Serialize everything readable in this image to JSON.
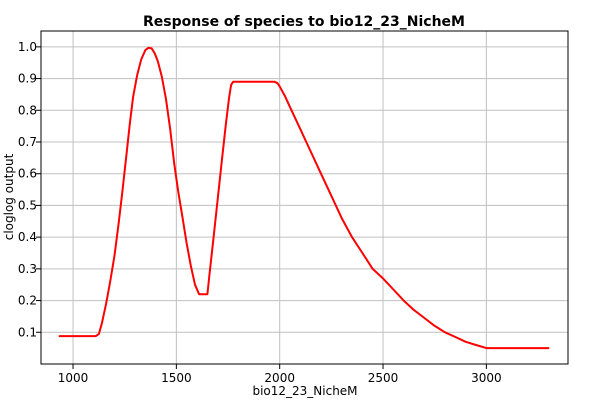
{
  "chart_data": {
    "type": "line",
    "title": "Response of species to bio12_23_NicheM",
    "xlabel": "bio12_23_NicheM",
    "ylabel": "cloglog output",
    "xlim": [
      845,
      3395
    ],
    "ylim": [
      0.0,
      1.05
    ],
    "xticks": [
      1000,
      1500,
      2000,
      2500,
      3000
    ],
    "yticks": [
      0.1,
      0.2,
      0.3,
      0.4,
      0.5,
      0.6,
      0.7,
      0.8,
      0.9,
      1.0
    ],
    "xtick_labels": [
      "1000",
      "1500",
      "2000",
      "2500",
      "3000"
    ],
    "ytick_labels": [
      "0.1",
      "0.2",
      "0.3",
      "0.4",
      "0.5",
      "0.6",
      "0.7",
      "0.8",
      "0.9",
      "1.0"
    ],
    "grid": true,
    "line_color": "#ff0000",
    "x": [
      935,
      1000,
      1050,
      1110,
      1125,
      1140,
      1160,
      1180,
      1200,
      1220,
      1240,
      1260,
      1275,
      1290,
      1310,
      1330,
      1350,
      1365,
      1380,
      1395,
      1410,
      1430,
      1450,
      1470,
      1490,
      1510,
      1530,
      1550,
      1570,
      1590,
      1610,
      1630,
      1645,
      1650,
      1660,
      1680,
      1700,
      1720,
      1740,
      1755,
      1765,
      1775,
      1800,
      1850,
      1900,
      1950,
      1975,
      1990,
      2000,
      2025,
      2050,
      2100,
      2150,
      2200,
      2250,
      2300,
      2350,
      2400,
      2450,
      2500,
      2550,
      2600,
      2650,
      2700,
      2750,
      2800,
      2850,
      2900,
      2950,
      3000,
      3050,
      3090,
      3150,
      3200,
      3300
    ],
    "y": [
      0.088,
      0.088,
      0.088,
      0.088,
      0.095,
      0.13,
      0.19,
      0.26,
      0.34,
      0.44,
      0.55,
      0.67,
      0.76,
      0.84,
      0.91,
      0.96,
      0.99,
      0.997,
      0.995,
      0.98,
      0.955,
      0.905,
      0.835,
      0.74,
      0.63,
      0.54,
      0.46,
      0.38,
      0.31,
      0.25,
      0.22,
      0.22,
      0.22,
      0.22,
      0.28,
      0.4,
      0.52,
      0.64,
      0.76,
      0.84,
      0.88,
      0.89,
      0.89,
      0.89,
      0.89,
      0.89,
      0.89,
      0.885,
      0.875,
      0.845,
      0.81,
      0.74,
      0.67,
      0.6,
      0.53,
      0.46,
      0.4,
      0.35,
      0.3,
      0.27,
      0.235,
      0.2,
      0.17,
      0.145,
      0.12,
      0.1,
      0.085,
      0.07,
      0.06,
      0.05,
      0.05,
      0.05,
      0.05,
      0.05,
      0.05
    ]
  }
}
